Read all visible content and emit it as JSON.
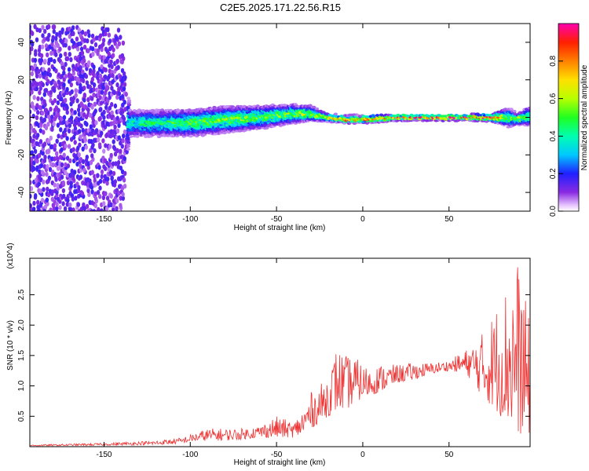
{
  "title": "C2E5.2025.171.22.56.R15",
  "chart_data": [
    {
      "type": "heatmap",
      "xlabel": "Height of straight line (km)",
      "ylabel": "Frequency (Hz)",
      "xlim": [
        -193,
        97
      ],
      "ylim": [
        -50,
        50
      ],
      "xticks": [
        -150,
        -100,
        -50,
        0,
        50
      ],
      "yticks": [
        -40,
        -20,
        0,
        20,
        40
      ],
      "colorbar": {
        "label": "Normalized spectral amplitude",
        "range": [
          0,
          1
        ],
        "ticks": [
          0.0,
          0.2,
          0.4,
          0.6,
          0.8
        ]
      },
      "band_profile": {
        "x": [
          -193,
          -140,
          -135,
          -120,
          -100,
          -80,
          -60,
          -40,
          -30,
          -25,
          -20,
          -10,
          0,
          20,
          40,
          60,
          75,
          85,
          90,
          97
        ],
        "center_freq": [
          0,
          -3,
          -3,
          -3,
          -3,
          -1,
          0,
          2,
          2,
          1,
          0,
          -1,
          -1,
          0,
          0,
          0,
          0,
          0,
          -1,
          1
        ],
        "half_width": [
          50,
          50,
          7,
          7,
          7,
          7,
          6,
          5,
          4,
          3,
          2,
          2,
          2,
          1.5,
          1.5,
          1.5,
          2,
          5,
          3,
          5
        ],
        "peak_amplitude": [
          0.15,
          0.15,
          0.4,
          0.45,
          0.5,
          0.55,
          0.55,
          0.55,
          0.6,
          0.6,
          0.7,
          0.8,
          0.85,
          0.9,
          0.95,
          0.95,
          0.9,
          0.5,
          0.6,
          0.5
        ]
      }
    },
    {
      "type": "line",
      "xlabel": "Height of straight line (km)",
      "ylabel": "SNR (10 * v/v)",
      "y_multiplier": "(x10^4)",
      "xlim": [
        -193,
        97
      ],
      "ylim": [
        0,
        3.1
      ],
      "xticks": [
        -150,
        -100,
        -50,
        0,
        50
      ],
      "yticks": [
        0.5,
        1.0,
        1.5,
        2.0,
        2.5
      ],
      "series": [
        {
          "color": "#ee3030",
          "x": [
            -193,
            -150,
            -120,
            -105,
            -100,
            -90,
            -80,
            -70,
            -60,
            -50,
            -40,
            -35,
            -30,
            -25,
            -20,
            -15,
            -10,
            -5,
            0,
            5,
            10,
            20,
            30,
            40,
            50,
            60,
            70,
            80,
            90,
            97
          ],
          "envelope_low": [
            0.01,
            0.02,
            0.03,
            0.05,
            0.08,
            0.1,
            0.1,
            0.12,
            0.15,
            0.15,
            0.15,
            0.2,
            0.3,
            0.4,
            0.5,
            0.6,
            0.6,
            0.7,
            0.8,
            0.85,
            0.9,
            1.05,
            1.1,
            1.2,
            1.25,
            1.2,
            0.8,
            0.5,
            0.2,
            0.2
          ],
          "envelope_high": [
            0.03,
            0.06,
            0.1,
            0.15,
            0.2,
            0.3,
            0.3,
            0.3,
            0.35,
            0.5,
            0.4,
            0.6,
            0.9,
            1.0,
            1.2,
            1.65,
            1.5,
            1.5,
            1.35,
            1.3,
            1.35,
            1.35,
            1.38,
            1.38,
            1.42,
            1.6,
            1.9,
            2.5,
            3.1,
            2.0
          ]
        }
      ]
    }
  ]
}
